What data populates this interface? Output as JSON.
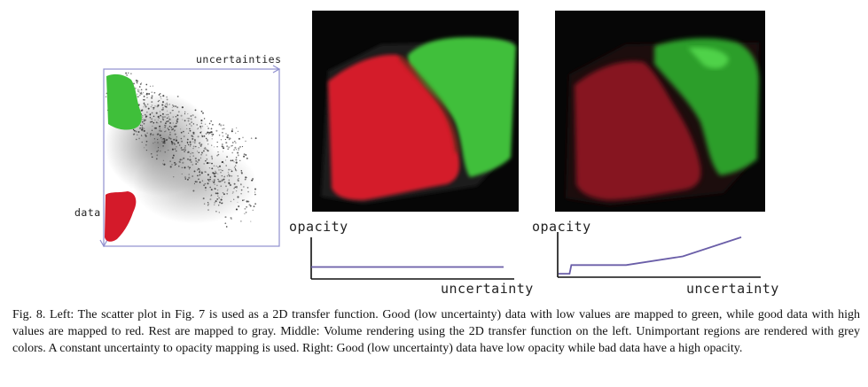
{
  "figure": {
    "scatter": {
      "x_label": "uncertainties",
      "y_label": "data"
    },
    "middle": {
      "y_label": "opacity",
      "x_label": "uncertainty",
      "curve": [
        [
          0,
          0.3
        ],
        [
          1,
          0.3
        ]
      ]
    },
    "right": {
      "y_label": "opacity",
      "x_label": "uncertainty",
      "curve": [
        [
          0,
          0.08
        ],
        [
          0.06,
          0.08
        ],
        [
          0.07,
          0.28
        ],
        [
          0.37,
          0.28
        ],
        [
          0.68,
          0.48
        ],
        [
          1,
          0.92
        ]
      ]
    },
    "colors": {
      "good_low": "#3fbf3a",
      "good_high": "#d41a2a",
      "rest": "#777777",
      "axis": "#7f7fc6",
      "curve": "#6a5ea8"
    },
    "caption": "Fig. 8.  Left: The scatter plot in Fig. 7 is used as a 2D transfer function. Good (low uncertainty) data with low values are mapped to green, while good data with high values are mapped to red. Rest are mapped to gray. Middle: Volume rendering using the 2D transfer function on the left. Unimportant regions are rendered with grey colors. A constant uncertainty to opacity mapping is used. Right: Good (low uncertainty) data have low opacity while bad data have a high opacity."
  }
}
